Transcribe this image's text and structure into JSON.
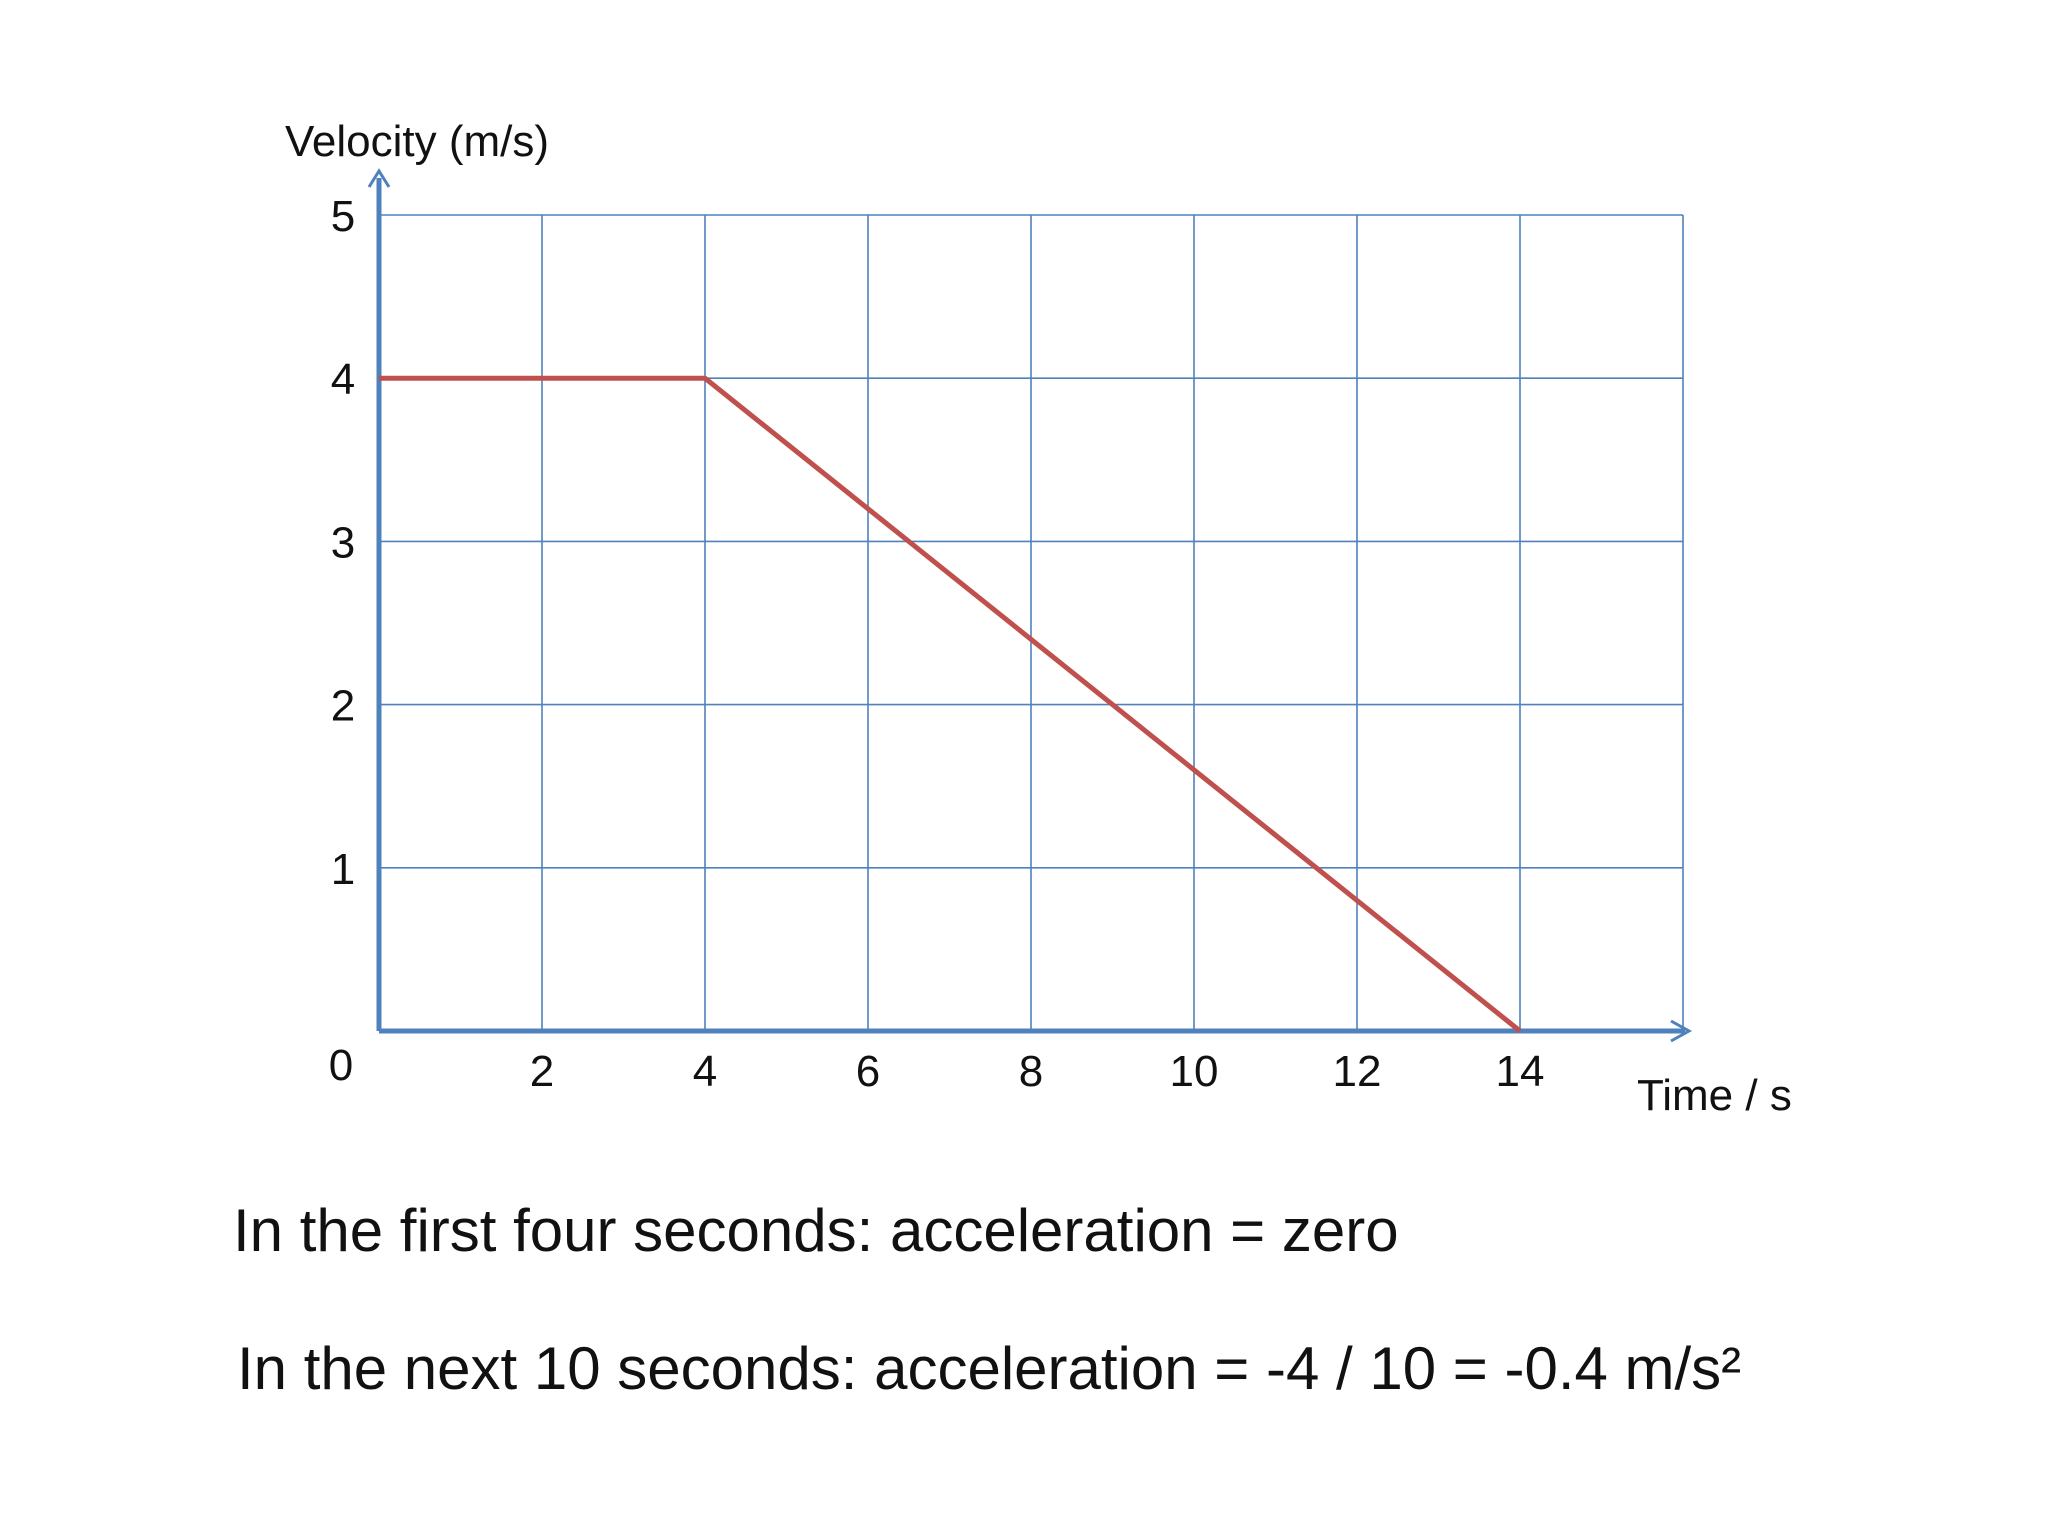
{
  "chart_data": {
    "type": "line",
    "xlabel": "Time / s",
    "ylabel": "Velocity (m/s)",
    "xlim": [
      0,
      16
    ],
    "ylim": [
      0,
      5
    ],
    "x_ticks": [
      2,
      4,
      6,
      8,
      10,
      12,
      14
    ],
    "y_ticks": [
      1,
      2,
      3,
      4,
      5
    ],
    "origin_label": "0",
    "grid": true,
    "series": [
      {
        "x": [
          0,
          4,
          14
        ],
        "y": [
          4,
          4,
          0
        ]
      }
    ],
    "colors": {
      "line": "#c0504d",
      "grid": "#4f81bd",
      "axis": "#4f81bd"
    }
  },
  "notes": {
    "line1": "In the first four seconds: acceleration = zero",
    "line2": "In the next 10 seconds: acceleration = -4 / 10 = -0.4 m/s²"
  }
}
